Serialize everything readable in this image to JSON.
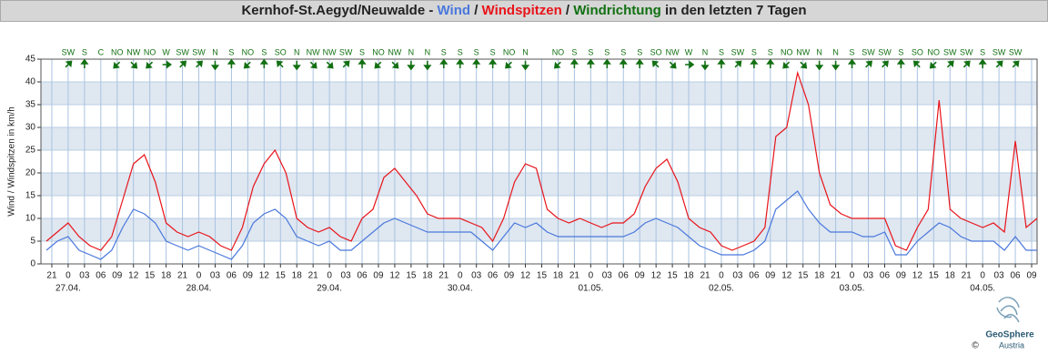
{
  "chart_data": {
    "type": "line",
    "title_station": "Kernhof-St.Aegyd/Neuwalde",
    "title_dash": "-",
    "title_sep": "/",
    "title_suffix": "in den letzten 7 Tagen",
    "ylabel": "Wind / Windspitzen in km/h",
    "ylim": [
      0,
      45
    ],
    "yticks": [
      0,
      5,
      10,
      15,
      20,
      25,
      30,
      35,
      40,
      45
    ],
    "bands": true,
    "grid": true,
    "xlim": [
      -5,
      178
    ],
    "xticks": [
      {
        "value": -3,
        "label": "21"
      },
      0,
      {
        "value": 3,
        "label": "03"
      },
      {
        "value": 6,
        "label": "06"
      },
      {
        "value": 9,
        "label": "09"
      },
      12,
      15,
      18,
      21,
      {
        "value": 24,
        "label": "0"
      },
      {
        "value": 27,
        "label": "03"
      },
      {
        "value": 30,
        "label": "06"
      },
      {
        "value": 33,
        "label": "09"
      },
      {
        "value": 36,
        "label": "12"
      },
      {
        "value": 39,
        "label": "15"
      },
      {
        "value": 42,
        "label": "18"
      },
      {
        "value": 45,
        "label": "21"
      },
      {
        "value": 48,
        "label": "0"
      },
      {
        "value": 51,
        "label": "03"
      },
      {
        "value": 54,
        "label": "06"
      },
      {
        "value": 57,
        "label": "09"
      },
      {
        "value": 60,
        "label": "12"
      },
      {
        "value": 63,
        "label": "15"
      },
      {
        "value": 66,
        "label": "18"
      },
      {
        "value": 69,
        "label": "21"
      },
      {
        "value": 72,
        "label": "0"
      },
      {
        "value": 75,
        "label": "03"
      },
      {
        "value": 78,
        "label": "06"
      },
      {
        "value": 81,
        "label": "09"
      },
      {
        "value": 84,
        "label": "12"
      },
      {
        "value": 87,
        "label": "15"
      },
      {
        "value": 90,
        "label": "18"
      },
      {
        "value": 93,
        "label": "21"
      },
      {
        "value": 96,
        "label": "0"
      },
      {
        "value": 99,
        "label": "03"
      },
      {
        "value": 102,
        "label": "06"
      },
      {
        "value": 105,
        "label": "09"
      },
      {
        "value": 108,
        "label": "12"
      },
      {
        "value": 111,
        "label": "15"
      },
      {
        "value": 114,
        "label": "18"
      },
      {
        "value": 117,
        "label": "21"
      },
      {
        "value": 120,
        "label": "0"
      },
      {
        "value": 123,
        "label": "03"
      },
      {
        "value": 126,
        "label": "06"
      },
      {
        "value": 129,
        "label": "09"
      },
      {
        "value": 132,
        "label": "12"
      },
      {
        "value": 135,
        "label": "15"
      },
      {
        "value": 138,
        "label": "18"
      },
      {
        "value": 141,
        "label": "21"
      },
      {
        "value": 144,
        "label": "0"
      },
      {
        "value": 147,
        "label": "03"
      },
      {
        "value": 150,
        "label": "06"
      },
      {
        "value": 153,
        "label": "09"
      },
      {
        "value": 156,
        "label": "12"
      },
      {
        "value": 159,
        "label": "15"
      },
      {
        "value": 162,
        "label": "18"
      },
      {
        "value": 165,
        "label": "21"
      },
      {
        "value": 168,
        "label": "0"
      },
      {
        "value": 171,
        "label": "03"
      },
      {
        "value": 174,
        "label": "06"
      },
      {
        "value": 177,
        "label": "09"
      }
    ],
    "date_labels": [
      {
        "value": 0,
        "label": "27.04."
      },
      {
        "value": 24,
        "label": "28.04."
      },
      {
        "value": 48,
        "label": "29.04."
      },
      {
        "value": 72,
        "label": "30.04."
      },
      {
        "value": 96,
        "label": "01.05."
      },
      {
        "value": 120,
        "label": "02.05."
      },
      {
        "value": 144,
        "label": "03.05."
      },
      {
        "value": 168,
        "label": "04.05."
      }
    ],
    "x": [
      -4,
      -2,
      0,
      2,
      4,
      6,
      8,
      10,
      12,
      14,
      16,
      18,
      20,
      22,
      24,
      26,
      28,
      30,
      32,
      34,
      36,
      38,
      40,
      42,
      44,
      46,
      48,
      50,
      52,
      54,
      56,
      58,
      60,
      62,
      64,
      66,
      68,
      70,
      72,
      74,
      76,
      78,
      80,
      82,
      84,
      86,
      88,
      90,
      92,
      94,
      96,
      98,
      100,
      102,
      104,
      106,
      108,
      110,
      112,
      114,
      116,
      118,
      120,
      122,
      124,
      126,
      128,
      130,
      132,
      134,
      136,
      138,
      140,
      142,
      144,
      146,
      148,
      150,
      152,
      154,
      156,
      158,
      160,
      162,
      164,
      166,
      168,
      170,
      172,
      174,
      176,
      178
    ],
    "series": [
      {
        "name": "Windspitzen",
        "color": "#e8141a",
        "values": [
          5,
          7,
          9,
          6,
          4,
          3,
          6,
          14,
          22,
          24,
          18,
          9,
          7,
          6,
          7,
          6,
          4,
          3,
          8,
          17,
          22,
          25,
          20,
          10,
          8,
          7,
          8,
          6,
          5,
          10,
          12,
          19,
          21,
          18,
          15,
          11,
          10,
          10,
          10,
          9,
          8,
          5,
          10,
          18,
          22,
          21,
          12,
          10,
          9,
          10,
          9,
          8,
          9,
          9,
          11,
          17,
          21,
          23,
          18,
          10,
          8,
          7,
          4,
          3,
          4,
          5,
          8,
          28,
          30,
          42,
          35,
          20,
          13,
          11,
          10,
          10,
          10,
          10,
          4,
          3,
          8,
          12,
          36,
          12,
          10,
          9,
          8,
          9,
          7,
          27,
          8,
          10
        ]
      },
      {
        "name": "Wind",
        "color": "#4a78dc",
        "values": [
          3,
          5,
          6,
          3,
          2,
          1,
          3,
          8,
          12,
          11,
          9,
          5,
          4,
          3,
          4,
          3,
          2,
          1,
          4,
          9,
          11,
          12,
          10,
          6,
          5,
          4,
          5,
          3,
          3,
          5,
          7,
          9,
          10,
          9,
          8,
          7,
          7,
          7,
          7,
          7,
          5,
          3,
          6,
          9,
          8,
          9,
          7,
          6,
          6,
          6,
          6,
          6,
          6,
          6,
          7,
          9,
          10,
          9,
          8,
          6,
          4,
          3,
          2,
          2,
          2,
          3,
          5,
          12,
          14,
          16,
          12,
          9,
          7,
          7,
          7,
          6,
          6,
          7,
          2,
          2,
          5,
          7,
          9,
          8,
          6,
          5,
          5,
          5,
          3,
          6,
          3,
          3
        ]
      }
    ],
    "wind_direction": {
      "name": "Windrichtung",
      "color": "#127012",
      "x": [
        0,
        3,
        6,
        9,
        12,
        15,
        18,
        21,
        24,
        27,
        30,
        33,
        36,
        39,
        42,
        45,
        48,
        51,
        54,
        57,
        60,
        63,
        66,
        69,
        72,
        75,
        78,
        81,
        84,
        87,
        90,
        93,
        96,
        99,
        102,
        105,
        108,
        111,
        114,
        117,
        120,
        123,
        126,
        129,
        132,
        135,
        138,
        141,
        144,
        147,
        150,
        153,
        156,
        159,
        162,
        165,
        168,
        171,
        174
      ],
      "labels": [
        "SW",
        "S",
        "C",
        "NO",
        "NW",
        "NO",
        "W",
        "SW",
        "SW",
        "N",
        "S",
        "NO",
        "S",
        "SO",
        "N",
        "NW",
        "NW",
        "SW",
        "S",
        "NO",
        "NW",
        "N",
        "N",
        "S",
        "S",
        "S",
        "S",
        "NO",
        "N",
        null,
        "NO",
        "S",
        "S",
        "S",
        "S",
        "S",
        "SO",
        "NW",
        "W",
        "N",
        "S",
        "SW",
        "S",
        "S",
        "NO",
        "NW",
        "N",
        "N",
        "S",
        "SW",
        "SW",
        "S",
        "SO",
        "NO",
        "SW",
        "SW",
        "S",
        "SW",
        "SW"
      ]
    },
    "logo": {
      "name": "GeoSphere",
      "sub": "Austria",
      "copyright": "©"
    }
  }
}
